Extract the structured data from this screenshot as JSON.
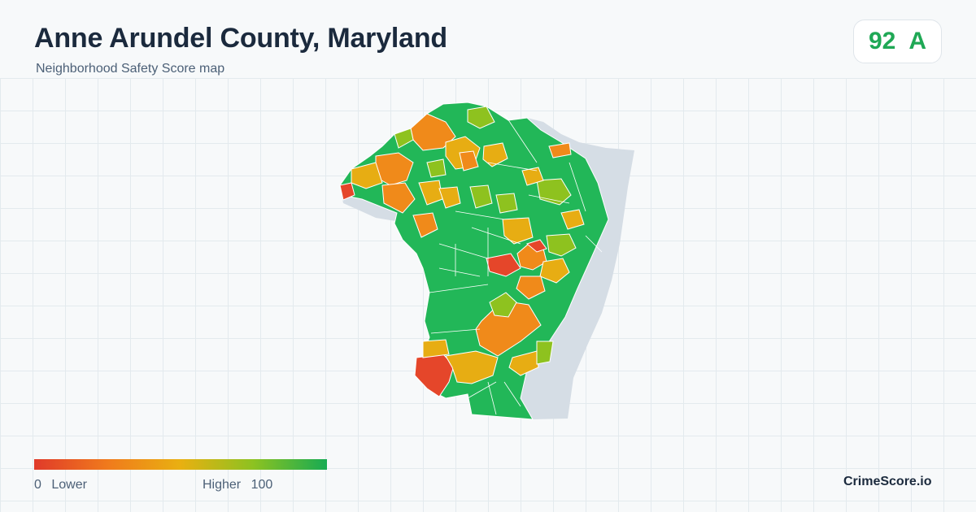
{
  "header": {
    "title": "Anne Arundel County, Maryland",
    "subtitle": "Neighborhood Safety Score map"
  },
  "score": {
    "value": "92",
    "grade": "A",
    "color": "#1fa855"
  },
  "legend": {
    "min": "0",
    "min_label": "Lower",
    "max_label": "Higher",
    "max": "100",
    "colors": [
      "#e03a2a",
      "#f07a1c",
      "#e9b011",
      "#8cc221",
      "#17ab53"
    ]
  },
  "brand": "CrimeScore.io",
  "map": {
    "water_color": "#d5dde5",
    "region_colors": {
      "high": "#22b758",
      "mid_high": "#8ec21f",
      "mid": "#e7ad13",
      "mid_low": "#f08a1a",
      "low": "#e5462a"
    }
  }
}
